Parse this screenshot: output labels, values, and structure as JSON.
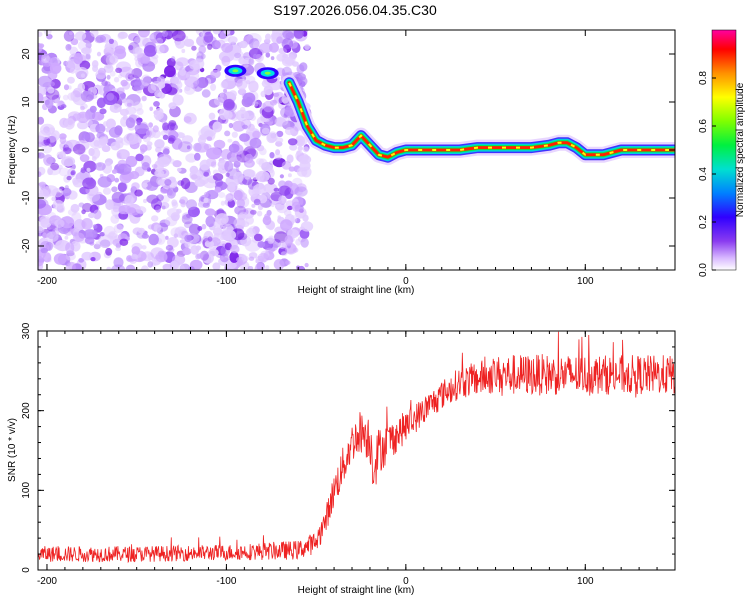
{
  "title": "S197.2026.056.04.35.C30",
  "colors": {
    "spectrogram_noise": "#8a3cf0",
    "snr_line": "#ee2222",
    "colorbar": [
      "#ffffff",
      "#b070ff",
      "#3000ff",
      "#00a0ff",
      "#00e0d0",
      "#00ff40",
      "#ffff00",
      "#ff9000",
      "#ff0000",
      "#ff00a0"
    ]
  },
  "chart_data": [
    {
      "type": "heatmap",
      "title": "",
      "xlabel": "Height of straight line (km)",
      "ylabel": "Frequency (Hz)",
      "xlim": [
        -205,
        150
      ],
      "ylim": [
        -25,
        25
      ],
      "xticks": [
        -200,
        -100,
        0,
        100
      ],
      "yticks": [
        -20,
        -10,
        0,
        10,
        20
      ],
      "noise_region_x": [
        -205,
        -55
      ],
      "ridge": {
        "x": [
          -65,
          -60,
          -55,
          -50,
          -45,
          -40,
          -35,
          -30,
          -25,
          -20,
          -15,
          -10,
          -5,
          0,
          10,
          20,
          30,
          40,
          50,
          60,
          70,
          80,
          85,
          90,
          95,
          100,
          110,
          120,
          130,
          140,
          150
        ],
        "y": [
          14,
          10,
          5,
          2,
          1,
          0.5,
          0.5,
          1,
          3,
          1,
          -1,
          -1.5,
          -0.5,
          0,
          0,
          0,
          0,
          0.5,
          0.5,
          0.5,
          0.5,
          1,
          1.5,
          1.5,
          0.5,
          -1,
          -1,
          0,
          0,
          0,
          0
        ]
      },
      "spots": [
        {
          "x": -95,
          "y": 16.5
        },
        {
          "x": -77,
          "y": 16
        }
      ],
      "colorbar": {
        "label": "Normalized spectral amplitude",
        "range": [
          0,
          1
        ],
        "ticks": [
          0.0,
          0.2,
          0.4,
          0.6,
          0.8
        ]
      }
    },
    {
      "type": "line",
      "title": "",
      "xlabel": "Height of straight line (km)",
      "ylabel": "SNR (10 * v/v)",
      "xlim": [
        -205,
        150
      ],
      "ylim": [
        0,
        300
      ],
      "xticks": [
        -200,
        -100,
        0,
        100
      ],
      "yticks": [
        0,
        100,
        200,
        300
      ],
      "series": [
        {
          "name": "SNR",
          "x": [
            -205,
            -150,
            -100,
            -60,
            -50,
            -45,
            -40,
            -35,
            -30,
            -25,
            -20,
            -18,
            -15,
            -10,
            -5,
            0,
            10,
            20,
            30,
            40,
            50,
            60,
            80,
            100,
            120,
            140,
            150
          ],
          "y": [
            20,
            20,
            22,
            25,
            35,
            60,
            100,
            130,
            160,
            175,
            165,
            130,
            150,
            160,
            170,
            180,
            200,
            220,
            235,
            240,
            245,
            245,
            245,
            245,
            245,
            245,
            245
          ],
          "noise": [
            10,
            10,
            10,
            12,
            14,
            16,
            22,
            25,
            25,
            28,
            30,
            35,
            30,
            25,
            22,
            20,
            18,
            18,
            20,
            22,
            24,
            26,
            26,
            25,
            25,
            25,
            25
          ]
        }
      ]
    }
  ]
}
